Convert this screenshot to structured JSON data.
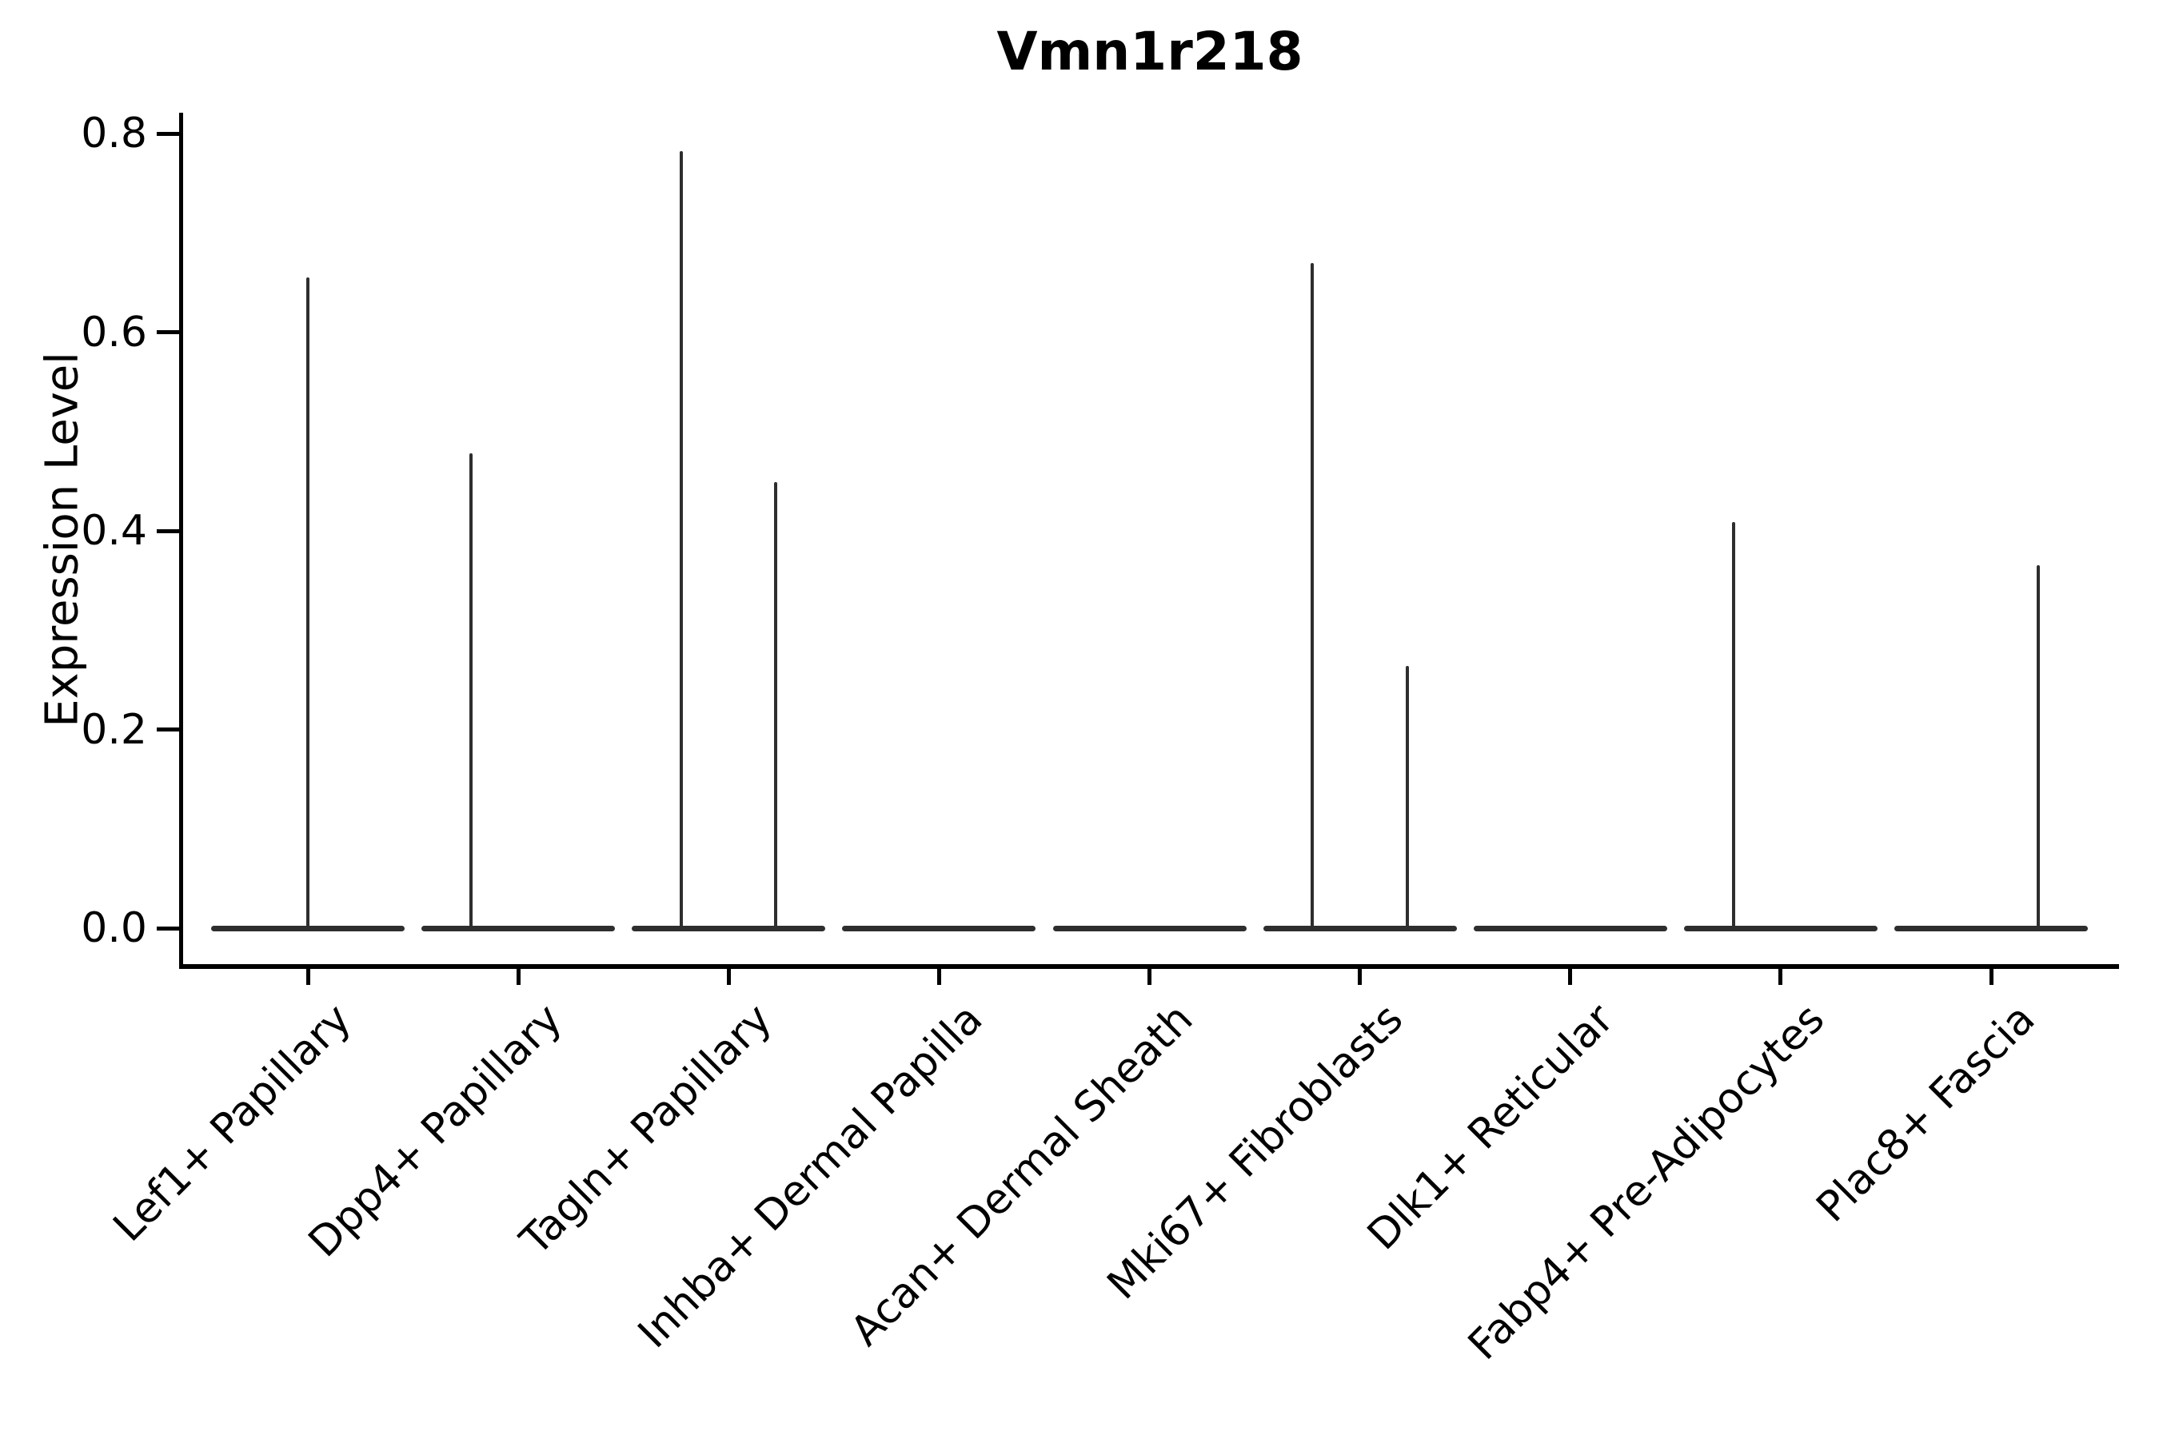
{
  "figure": {
    "title": "Vmn1r218",
    "background_color": "#ffffff",
    "text_color": "#000000",
    "violin_color": "#2e2e2e"
  },
  "chart_data": {
    "type": "violin",
    "title": "Vmn1r218",
    "xlabel": "",
    "ylabel": "Expression Level",
    "ylim": [
      -0.04,
      0.82
    ],
    "yticks": [
      0.0,
      0.2,
      0.4,
      0.6,
      0.8
    ],
    "grid": false,
    "legend": false,
    "violin_half_width": 0.46,
    "categories": [
      "Lef1+ Papillary",
      "Dpp4+ Papillary",
      "Tagln+ Papillary",
      "Inhba+ Dermal Papilla",
      "Acan+ Dermal Sheath",
      "Mki67+ Fibroblasts",
      "Dlk1+ Reticular",
      "Fabp4+ Pre-Adipocytes",
      "Plac8+ Fascia"
    ],
    "series": [
      {
        "name": "Lef1+ Papillary",
        "bulk_at": 0.0,
        "outliers": [
          {
            "value": 0.655,
            "x_offset": 0.0
          }
        ]
      },
      {
        "name": "Dpp4+ Papillary",
        "bulk_at": 0.0,
        "outliers": [
          {
            "value": 0.478,
            "x_offset": -0.225
          }
        ]
      },
      {
        "name": "Tagln+ Papillary",
        "bulk_at": 0.0,
        "outliers": [
          {
            "value": 0.782,
            "x_offset": -0.225
          },
          {
            "value": 0.449,
            "x_offset": 0.225
          }
        ]
      },
      {
        "name": "Inhba+ Dermal Papilla",
        "bulk_at": 0.0,
        "outliers": []
      },
      {
        "name": "Acan+ Dermal Sheath",
        "bulk_at": 0.0,
        "outliers": []
      },
      {
        "name": "Mki67+ Fibroblasts",
        "bulk_at": 0.0,
        "outliers": [
          {
            "value": 0.67,
            "x_offset": -0.225
          },
          {
            "value": 0.264,
            "x_offset": 0.225
          }
        ]
      },
      {
        "name": "Dlk1+ Reticular",
        "bulk_at": 0.0,
        "outliers": []
      },
      {
        "name": "Fabp4+ Pre-Adipocytes",
        "bulk_at": 0.0,
        "outliers": [
          {
            "value": 0.409,
            "x_offset": -0.225
          }
        ]
      },
      {
        "name": "Plac8+ Fascia",
        "bulk_at": 0.0,
        "outliers": [
          {
            "value": 0.365,
            "x_offset": 0.225
          }
        ]
      }
    ]
  }
}
